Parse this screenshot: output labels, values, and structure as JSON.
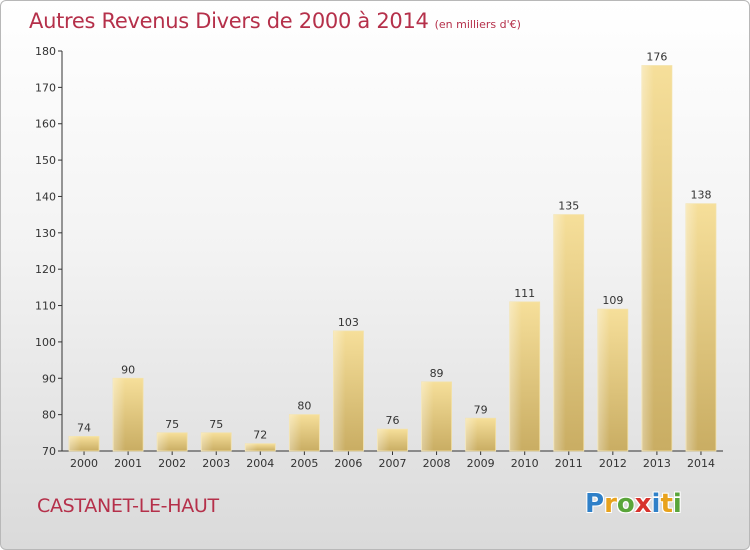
{
  "header": {
    "title": "Autres Revenus Divers de 2000 à 2014",
    "unit": "(en milliers d'€)"
  },
  "footer": {
    "commune": "CASTANET-LE-HAUT",
    "logo_text": "Proxiti",
    "logo_letters": [
      {
        "char": "P",
        "color": "#2f80c8"
      },
      {
        "char": "r",
        "color": "#e8a21c"
      },
      {
        "char": "o",
        "color": "#5aa53a"
      },
      {
        "char": "x",
        "color": "#d8322c"
      },
      {
        "char": "i",
        "color": "#2f80c8"
      },
      {
        "char": "t",
        "color": "#e8a21c"
      },
      {
        "char": "i",
        "color": "#5aa53a"
      }
    ]
  },
  "colors": {
    "title": "#b5304a",
    "bar_top": "#f6df9a",
    "bar_bottom": "#c9ad63",
    "axis": "#333333"
  },
  "chart_data": {
    "type": "bar",
    "title": "Autres Revenus Divers de 2000 à 2014",
    "unit": "(en milliers d'€)",
    "categories": [
      "2000",
      "2001",
      "2002",
      "2003",
      "2004",
      "2005",
      "2006",
      "2007",
      "2008",
      "2009",
      "2010",
      "2011",
      "2012",
      "2013",
      "2014"
    ],
    "values": [
      74,
      90,
      75,
      75,
      72,
      80,
      103,
      76,
      89,
      79,
      111,
      135,
      109,
      176,
      138
    ],
    "ylim": [
      70,
      180
    ],
    "yticks": [
      70,
      80,
      90,
      100,
      110,
      120,
      130,
      140,
      150,
      160,
      170,
      180
    ],
    "grid": false,
    "legend": "none"
  }
}
